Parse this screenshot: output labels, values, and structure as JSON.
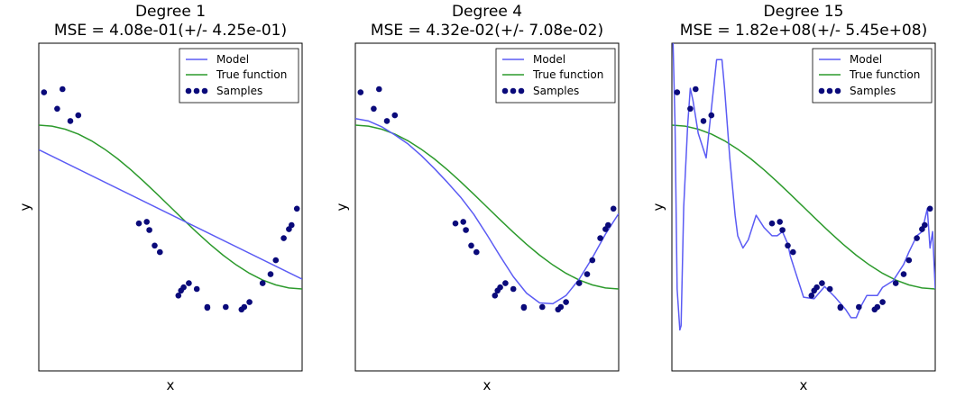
{
  "chart_data": [
    {
      "type": "line",
      "title": "Degree 1",
      "subtitle": "MSE = 4.08e-01(+/- 4.25e-01)",
      "xlabel": "x",
      "ylabel": "y",
      "xlim": [
        0,
        1
      ],
      "ylim": [
        -2,
        2
      ],
      "ticks": false,
      "grid": false,
      "legend": {
        "placement": "top-right",
        "entries": [
          "Model",
          "True function",
          "Samples"
        ]
      },
      "series": [
        {
          "name": "Model",
          "kind": "line",
          "color": "#5b5bf4",
          "x": [
            0,
            1
          ],
          "y": [
            0.7,
            -0.88
          ]
        },
        {
          "name": "True function",
          "kind": "line",
          "color": "#2c9a2c",
          "x": [
            0,
            0.05,
            0.1,
            0.15,
            0.2,
            0.25,
            0.3,
            0.35,
            0.4,
            0.45,
            0.5,
            0.55,
            0.6,
            0.65,
            0.7,
            0.75,
            0.8,
            0.85,
            0.9,
            0.95,
            1
          ],
          "y": [
            1.0,
            0.988,
            0.951,
            0.891,
            0.809,
            0.707,
            0.588,
            0.454,
            0.309,
            0.156,
            0.0,
            -0.156,
            -0.309,
            -0.454,
            -0.588,
            -0.707,
            -0.809,
            -0.891,
            -0.951,
            -0.988,
            -1.0
          ]
        },
        {
          "name": "Samples",
          "kind": "scatter",
          "color": "#0a0a7a",
          "x": [
            0.02,
            0.07,
            0.09,
            0.12,
            0.15,
            0.38,
            0.41,
            0.42,
            0.44,
            0.46,
            0.53,
            0.54,
            0.55,
            0.57,
            0.6,
            0.64,
            0.64,
            0.71,
            0.77,
            0.78,
            0.8,
            0.85,
            0.88,
            0.9,
            0.93,
            0.95,
            0.96,
            0.98
          ],
          "y": [
            1.4,
            1.2,
            1.44,
            1.05,
            1.12,
            -0.2,
            -0.18,
            -0.28,
            -0.47,
            -0.55,
            -1.08,
            -1.02,
            -0.98,
            -0.93,
            -1.0,
            -1.22,
            -1.23,
            -1.22,
            -1.25,
            -1.22,
            -1.16,
            -0.93,
            -0.82,
            -0.65,
            -0.38,
            -0.27,
            -0.22,
            -0.02
          ]
        }
      ]
    },
    {
      "type": "line",
      "title": "Degree 4",
      "subtitle": "MSE = 4.32e-02(+/- 7.08e-02)",
      "xlabel": "x",
      "ylabel": "y",
      "xlim": [
        0,
        1
      ],
      "ylim": [
        -2,
        2
      ],
      "ticks": false,
      "grid": false,
      "legend": {
        "placement": "top-right",
        "entries": [
          "Model",
          "True function",
          "Samples"
        ]
      },
      "series": [
        {
          "name": "Model",
          "kind": "line",
          "color": "#5b5bf4",
          "x": [
            0,
            0.05,
            0.1,
            0.15,
            0.2,
            0.25,
            0.3,
            0.35,
            0.4,
            0.45,
            0.5,
            0.55,
            0.6,
            0.65,
            0.7,
            0.75,
            0.8,
            0.85,
            0.9,
            0.95,
            1
          ],
          "y": [
            1.08,
            1.05,
            0.98,
            0.88,
            0.77,
            0.63,
            0.47,
            0.3,
            0.12,
            -0.09,
            -0.34,
            -0.6,
            -0.85,
            -1.05,
            -1.17,
            -1.18,
            -1.08,
            -0.88,
            -0.62,
            -0.33,
            -0.08
          ]
        },
        {
          "name": "True function",
          "kind": "line",
          "color": "#2c9a2c",
          "x": [
            0,
            0.05,
            0.1,
            0.15,
            0.2,
            0.25,
            0.3,
            0.35,
            0.4,
            0.45,
            0.5,
            0.55,
            0.6,
            0.65,
            0.7,
            0.75,
            0.8,
            0.85,
            0.9,
            0.95,
            1
          ],
          "y": [
            1.0,
            0.988,
            0.951,
            0.891,
            0.809,
            0.707,
            0.588,
            0.454,
            0.309,
            0.156,
            0.0,
            -0.156,
            -0.309,
            -0.454,
            -0.588,
            -0.707,
            -0.809,
            -0.891,
            -0.951,
            -0.988,
            -1.0
          ]
        },
        {
          "name": "Samples",
          "kind": "scatter",
          "color": "#0a0a7a",
          "x": [
            0.02,
            0.07,
            0.09,
            0.12,
            0.15,
            0.38,
            0.41,
            0.42,
            0.44,
            0.46,
            0.53,
            0.54,
            0.55,
            0.57,
            0.6,
            0.64,
            0.64,
            0.71,
            0.77,
            0.78,
            0.8,
            0.85,
            0.88,
            0.9,
            0.93,
            0.95,
            0.96,
            0.98
          ],
          "y": [
            1.4,
            1.2,
            1.44,
            1.05,
            1.12,
            -0.2,
            -0.18,
            -0.28,
            -0.47,
            -0.55,
            -1.08,
            -1.02,
            -0.98,
            -0.93,
            -1.0,
            -1.22,
            -1.23,
            -1.22,
            -1.25,
            -1.22,
            -1.16,
            -0.93,
            -0.82,
            -0.65,
            -0.38,
            -0.27,
            -0.22,
            -0.02
          ]
        }
      ]
    },
    {
      "type": "line",
      "title": "Degree 15",
      "subtitle": "MSE = 1.82e+08(+/- 5.45e+08)",
      "xlabel": "x",
      "ylabel": "y",
      "xlim": [
        0,
        1
      ],
      "ylim": [
        -2,
        2
      ],
      "ticks": false,
      "grid": false,
      "legend": {
        "placement": "top-right",
        "entries": [
          "Model",
          "True function",
          "Samples"
        ]
      },
      "series": [
        {
          "name": "Model",
          "kind": "line",
          "color": "#5b5bf4",
          "x": [
            0.0,
            0.012,
            0.02,
            0.03,
            0.035,
            0.045,
            0.06,
            0.07,
            0.08,
            0.1,
            0.13,
            0.15,
            0.17,
            0.19,
            0.2,
            0.22,
            0.24,
            0.25,
            0.27,
            0.29,
            0.32,
            0.35,
            0.38,
            0.4,
            0.42,
            0.44,
            0.45,
            0.47,
            0.5,
            0.54,
            0.58,
            0.62,
            0.66,
            0.68,
            0.7,
            0.72,
            0.74,
            0.78,
            0.8,
            0.84,
            0.88,
            0.9,
            0.93,
            0.95,
            0.97,
            0.98,
            0.99,
            1.0
          ],
          "y": [
            2.6,
            1.0,
            -1.0,
            -1.5,
            -1.45,
            0.0,
            1.0,
            1.45,
            1.3,
            0.9,
            0.6,
            1.2,
            1.8,
            1.8,
            1.45,
            0.6,
            -0.1,
            -0.35,
            -0.5,
            -0.4,
            -0.1,
            -0.25,
            -0.35,
            -0.35,
            -0.3,
            -0.45,
            -0.6,
            -0.8,
            -1.1,
            -1.12,
            -0.97,
            -1.1,
            -1.25,
            -1.35,
            -1.35,
            -1.2,
            -1.08,
            -1.08,
            -0.98,
            -0.9,
            -0.7,
            -0.55,
            -0.35,
            -0.3,
            -0.02,
            -0.5,
            -0.3,
            -1.0
          ]
        },
        {
          "name": "True function",
          "kind": "line",
          "color": "#2c9a2c",
          "x": [
            0,
            0.05,
            0.1,
            0.15,
            0.2,
            0.25,
            0.3,
            0.35,
            0.4,
            0.45,
            0.5,
            0.55,
            0.6,
            0.65,
            0.7,
            0.75,
            0.8,
            0.85,
            0.9,
            0.95,
            1
          ],
          "y": [
            1.0,
            0.988,
            0.951,
            0.891,
            0.809,
            0.707,
            0.588,
            0.454,
            0.309,
            0.156,
            0.0,
            -0.156,
            -0.309,
            -0.454,
            -0.588,
            -0.707,
            -0.809,
            -0.891,
            -0.951,
            -0.988,
            -1.0
          ]
        },
        {
          "name": "Samples",
          "kind": "scatter",
          "color": "#0a0a7a",
          "x": [
            0.02,
            0.07,
            0.09,
            0.12,
            0.15,
            0.38,
            0.41,
            0.42,
            0.44,
            0.46,
            0.53,
            0.54,
            0.55,
            0.57,
            0.6,
            0.64,
            0.64,
            0.71,
            0.77,
            0.78,
            0.8,
            0.85,
            0.88,
            0.9,
            0.93,
            0.95,
            0.96,
            0.98
          ],
          "y": [
            1.4,
            1.2,
            1.44,
            1.05,
            1.12,
            -0.2,
            -0.18,
            -0.28,
            -0.47,
            -0.55,
            -1.08,
            -1.02,
            -0.98,
            -0.93,
            -1.0,
            -1.22,
            -1.23,
            -1.22,
            -1.25,
            -1.22,
            -1.16,
            -0.93,
            -0.82,
            -0.65,
            -0.38,
            -0.27,
            -0.22,
            -0.02
          ]
        }
      ]
    }
  ]
}
